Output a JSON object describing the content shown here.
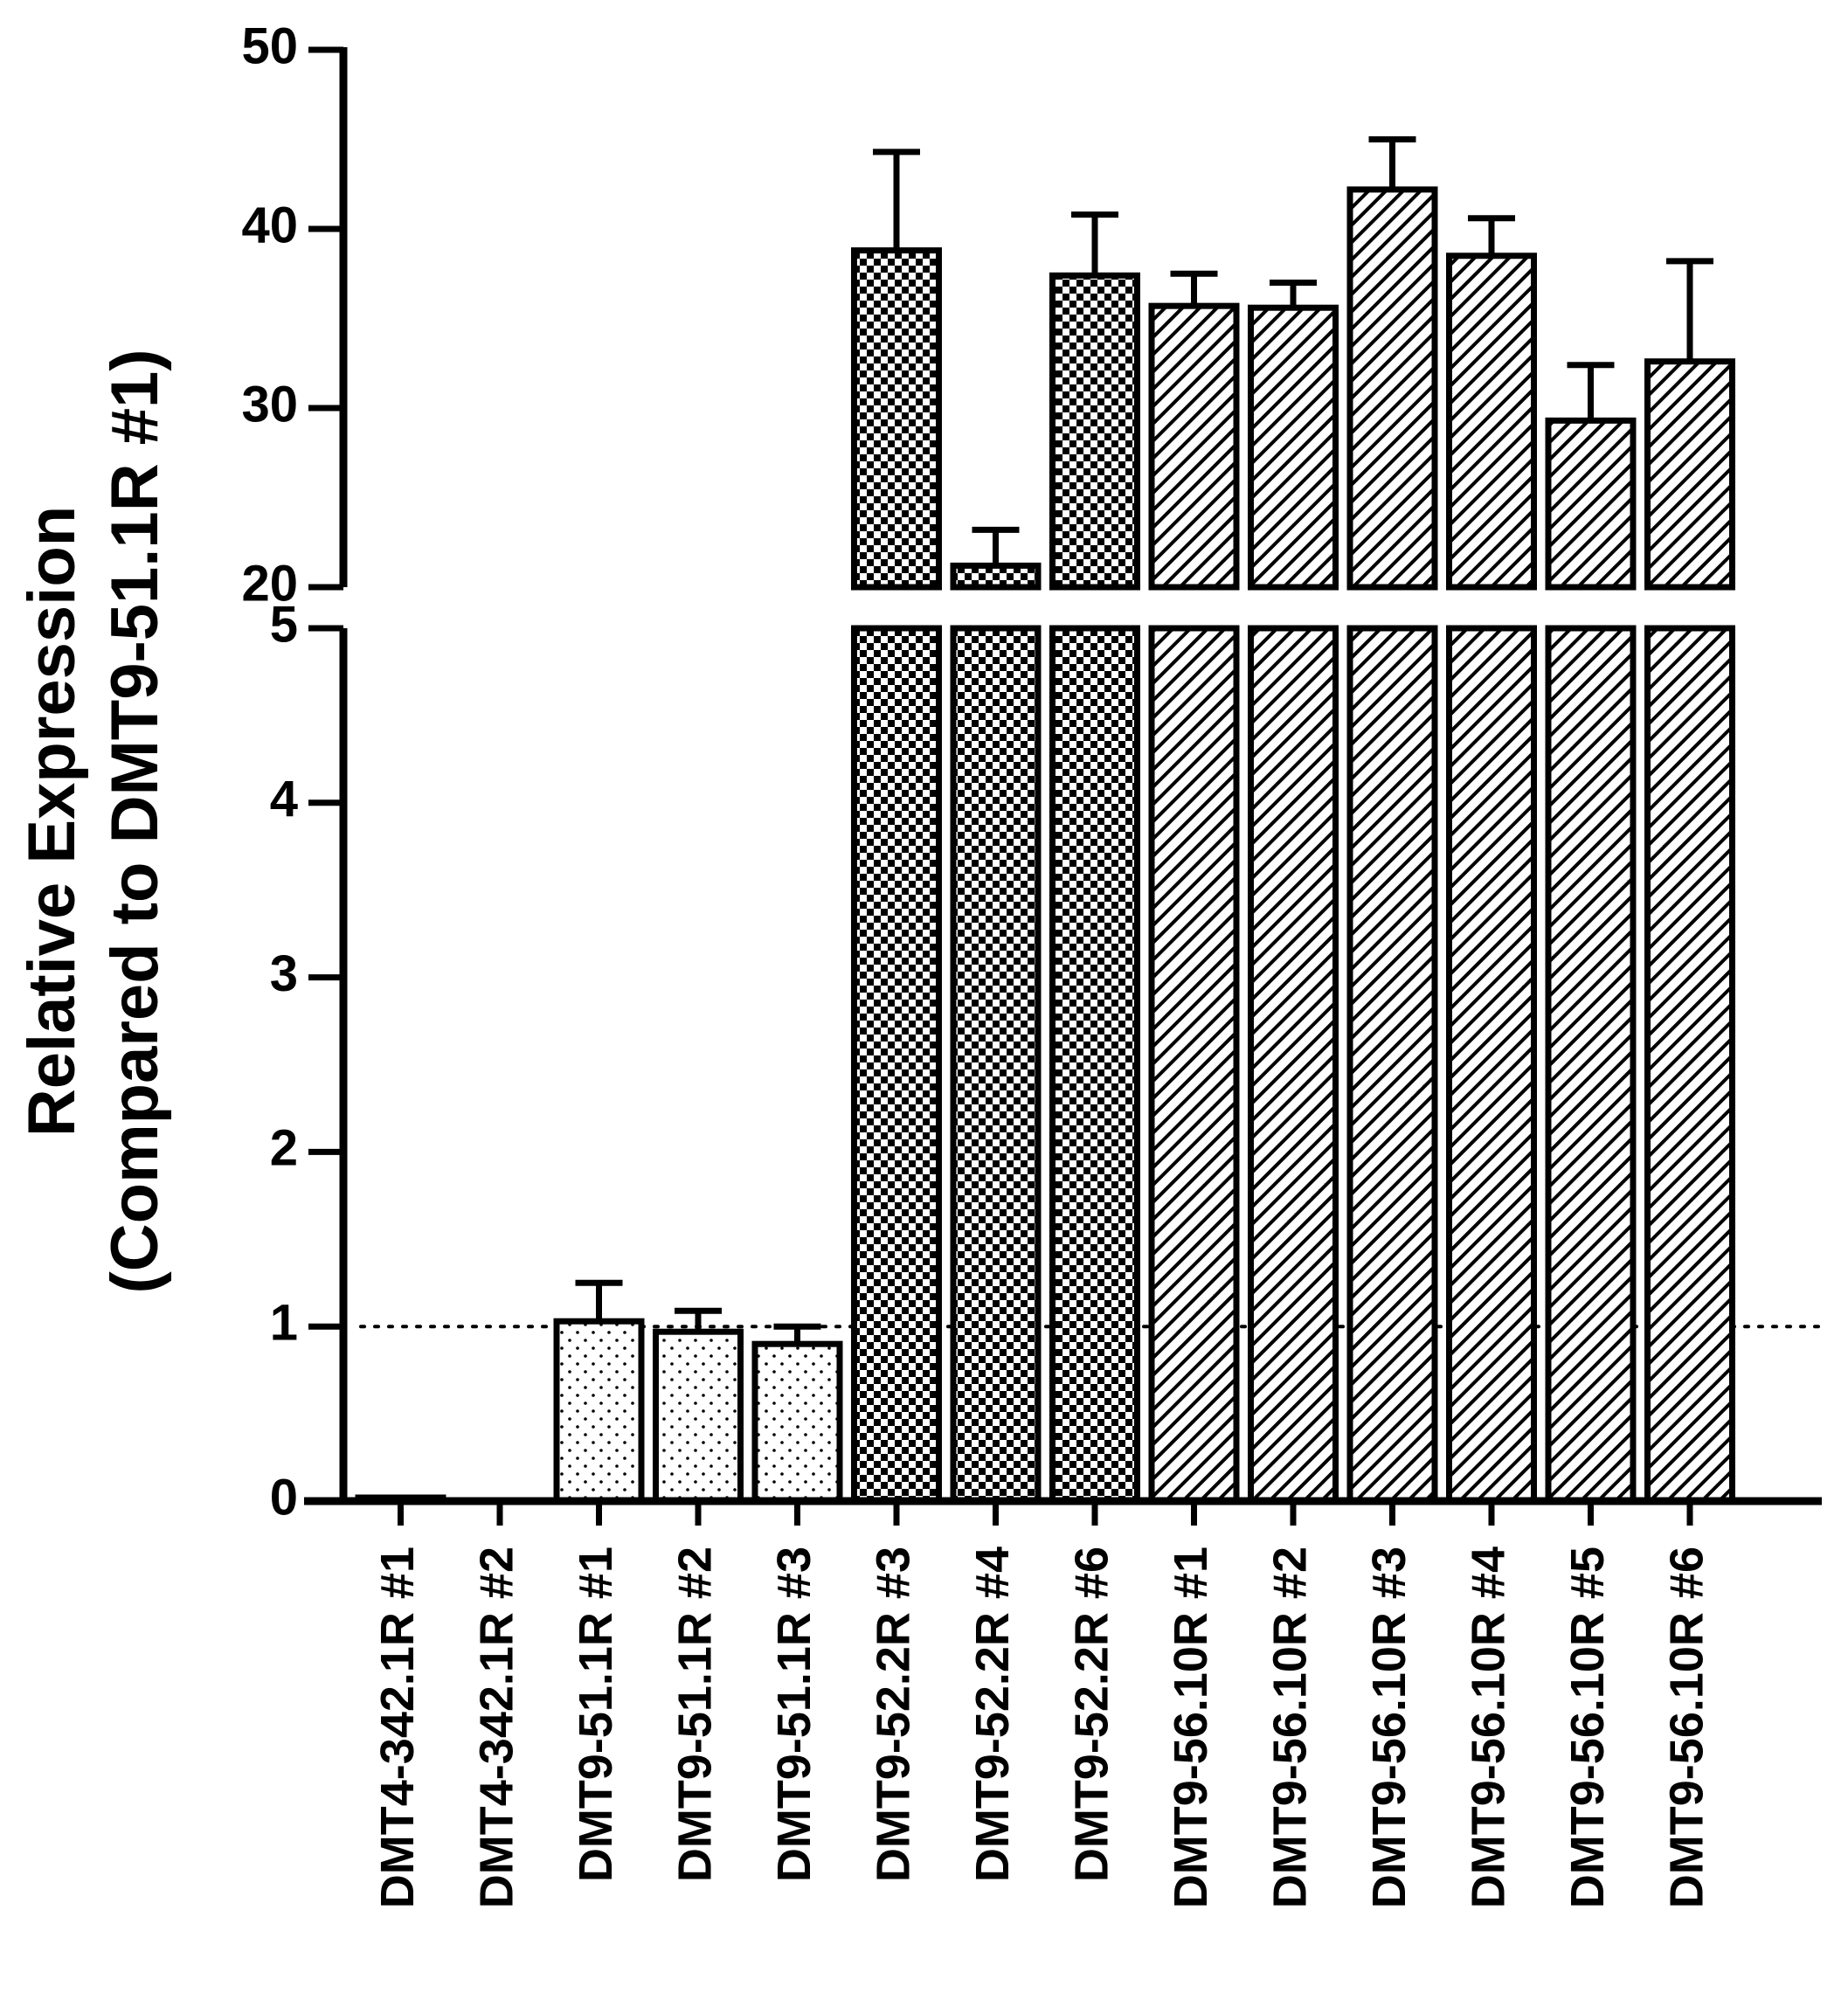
{
  "chart_data": {
    "type": "bar",
    "ylabel_line1": "Relative Expression",
    "ylabel_line2": "(Compared to DMT9-51.1R #1)",
    "xlabel": "",
    "title": "",
    "axis_break": true,
    "lower_segment": {
      "ylim": [
        0,
        5
      ],
      "ticks": [
        0,
        1,
        2,
        3,
        4,
        5
      ]
    },
    "upper_segment": {
      "ylim": [
        20,
        50
      ],
      "ticks": [
        20,
        30,
        40,
        50
      ]
    },
    "reference_line": 1,
    "categories": [
      "DMT4-342.1R #1",
      "DMT4-342.1R #2",
      "DMT9-51.1R #1",
      "DMT9-51.1R #2",
      "DMT9-51.1R #3",
      "DMT9-52.2R #3",
      "DMT9-52.2R #4",
      "DMT9-52.2R #6",
      "DMT9-56.10R #1",
      "DMT9-56.10R #2",
      "DMT9-56.10R #3",
      "DMT9-56.10R #4",
      "DMT9-56.10R #5",
      "DMT9-56.10R #6"
    ],
    "values": [
      0.02,
      0,
      1.03,
      0.97,
      0.9,
      38.8,
      21.2,
      37.4,
      35.7,
      35.6,
      42.2,
      38.5,
      29.3,
      32.6
    ],
    "errors": [
      0,
      0,
      0.22,
      0.12,
      0.1,
      5.5,
      2.0,
      3.4,
      1.8,
      1.4,
      2.8,
      2.1,
      3.1,
      5.6
    ],
    "patterns": [
      "solid",
      "solid",
      "dots",
      "dots",
      "dots",
      "checker",
      "checker",
      "checker",
      "hatch",
      "hatch",
      "hatch",
      "hatch",
      "hatch",
      "hatch"
    ]
  }
}
